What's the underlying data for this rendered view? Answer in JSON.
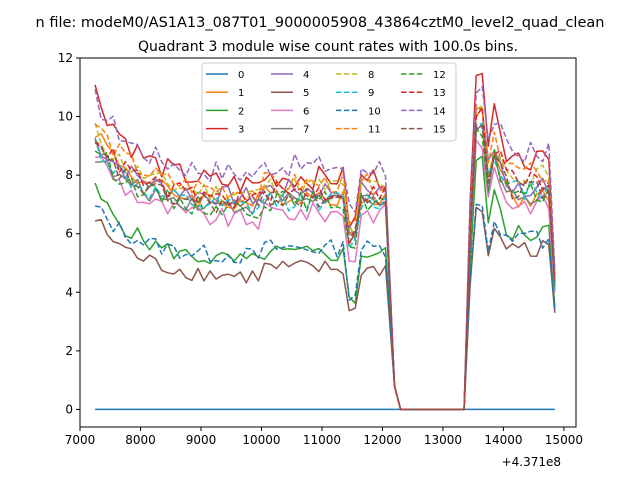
{
  "chart_data": {
    "type": "line",
    "suptitle": "n file: modeM0/AS1A13_087T01_9000005908_43864cztM0_level2_quad_clean",
    "title": "Quadrant 3 module wise count rates with 100.0s bins.",
    "xlabel": "",
    "ylabel": "",
    "x_offset_label": "+4.371e8",
    "xlim": [
      7000,
      15200
    ],
    "ylim": [
      -0.6,
      12
    ],
    "x_ticks": [
      7000,
      8000,
      9000,
      10000,
      11000,
      12000,
      13000,
      14000,
      15000
    ],
    "y_ticks": [
      0,
      2,
      4,
      6,
      8,
      10,
      12
    ],
    "grid": false,
    "legend": {
      "position": "upper-center",
      "columns": 4
    },
    "x_start": 7250,
    "x_step": 100,
    "gap": {
      "from": 12300,
      "to": 13350,
      "value": 0
    },
    "recovery_x": [
      13350,
      13450,
      13550
    ],
    "series": [
      {
        "name": "0",
        "color": "#1f77b4",
        "dash": "solid",
        "values": "flat:0"
      },
      {
        "name": "1",
        "color": "#ff7f0e",
        "dash": "solid",
        "early": 9.6,
        "late": 7.0,
        "peak": 10.0,
        "end": 7.2,
        "final": 4.0,
        "jitter": 0.35
      },
      {
        "name": "2",
        "color": "#2ca02c",
        "dash": "solid",
        "early": 7.5,
        "late": 5.0,
        "peak": 8.5,
        "end": 6.0,
        "final": 3.5,
        "jitter": 0.3
      },
      {
        "name": "3",
        "color": "#d62728",
        "dash": "solid",
        "early": 10.9,
        "late": 7.6,
        "peak": 11.4,
        "end": 8.5,
        "final": 4.5,
        "jitter": 0.4
      },
      {
        "name": "4",
        "color": "#9467bd",
        "dash": "solid",
        "early": 9.2,
        "late": 7.2,
        "peak": 10.3,
        "end": 7.6,
        "final": 4.3,
        "jitter": 0.35
      },
      {
        "name": "5",
        "color": "#8c564b",
        "dash": "solid",
        "early": 6.5,
        "late": 4.5,
        "peak": 6.9,
        "end": 5.5,
        "final": 3.3,
        "jitter": 0.3
      },
      {
        "name": "6",
        "color": "#e377c2",
        "dash": "solid",
        "early": 8.8,
        "late": 6.4,
        "peak": 9.2,
        "end": 7.0,
        "final": 4.0,
        "jitter": 0.35
      },
      {
        "name": "7",
        "color": "#7f7f7f",
        "dash": "solid",
        "early": 8.7,
        "late": 6.9,
        "peak": 9.5,
        "end": 7.3,
        "final": 4.2,
        "jitter": 0.3
      },
      {
        "name": "8",
        "color": "#bcbd22",
        "dash": "dashed",
        "early": 9.5,
        "late": 7.3,
        "peak": 10.2,
        "end": 8.0,
        "final": 4.4,
        "jitter": 0.35
      },
      {
        "name": "9",
        "color": "#17becf",
        "dash": "dashed",
        "early": 9.1,
        "late": 6.8,
        "peak": 9.7,
        "end": 7.5,
        "final": 4.1,
        "jitter": 0.35
      },
      {
        "name": "10",
        "color": "#1f77b4",
        "dash": "dashed",
        "early": 6.9,
        "late": 5.2,
        "peak": 7.0,
        "end": 5.8,
        "final": 3.4,
        "jitter": 0.3
      },
      {
        "name": "11",
        "color": "#ff7f0e",
        "dash": "dashed",
        "early": 9.8,
        "late": 7.4,
        "peak": 10.4,
        "end": 8.1,
        "final": 4.5,
        "jitter": 0.35
      },
      {
        "name": "12",
        "color": "#2ca02c",
        "dash": "dashed",
        "early": 9.0,
        "late": 6.8,
        "peak": 9.6,
        "end": 7.4,
        "final": 4.2,
        "jitter": 0.35
      },
      {
        "name": "13",
        "color": "#d62728",
        "dash": "dashed",
        "early": 9.4,
        "late": 7.1,
        "peak": 10.0,
        "end": 7.8,
        "final": 4.4,
        "jitter": 0.35
      },
      {
        "name": "14",
        "color": "#9467bd",
        "dash": "dashed",
        "early": 10.6,
        "late": 8.0,
        "peak": 10.8,
        "end": 8.8,
        "final": 4.8,
        "jitter": 0.4
      },
      {
        "name": "15",
        "color": "#8c564b",
        "dash": "dashed",
        "early": 9.0,
        "late": 6.9,
        "peak": 9.6,
        "end": 7.5,
        "final": 4.3,
        "jitter": 0.35
      }
    ]
  }
}
